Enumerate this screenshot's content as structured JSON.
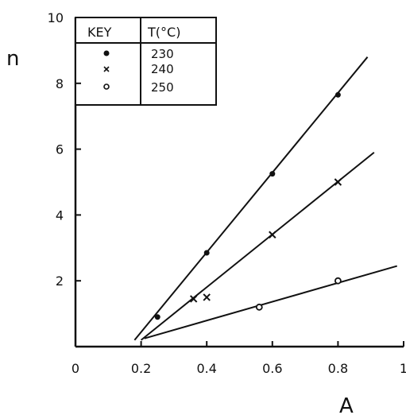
{
  "chart_data": {
    "type": "scatter",
    "xlabel": "A",
    "ylabel": "n",
    "xlim": [
      0,
      1
    ],
    "ylim": [
      0,
      10
    ],
    "x_ticks": [
      "0",
      "0.2",
      "0.4",
      "0.6",
      "0.8",
      "1"
    ],
    "y_ticks": [
      "2",
      "4",
      "6",
      "8",
      "10"
    ],
    "grid": false,
    "legend": {
      "placement": "top-left",
      "header_key": "KEY",
      "header_temp": "T(°C)",
      "entries": [
        "230",
        "240",
        "250"
      ]
    },
    "series": [
      {
        "name": "230",
        "marker": "filled-circle",
        "points": [
          [
            0.25,
            0.9
          ],
          [
            0.4,
            2.85
          ],
          [
            0.6,
            5.25
          ],
          [
            0.8,
            7.65
          ]
        ],
        "fit_line": [
          [
            0.18,
            0.2
          ],
          [
            0.89,
            8.8
          ]
        ]
      },
      {
        "name": "240",
        "marker": "cross",
        "points": [
          [
            0.36,
            1.45
          ],
          [
            0.4,
            1.5
          ],
          [
            0.6,
            3.4
          ],
          [
            0.8,
            5.0
          ]
        ],
        "fit_line": [
          [
            0.2,
            0.2
          ],
          [
            0.91,
            5.9
          ]
        ]
      },
      {
        "name": "250",
        "marker": "open-circle",
        "points": [
          [
            0.56,
            1.2
          ],
          [
            0.8,
            2.0
          ]
        ],
        "fit_line": [
          [
            0.21,
            0.25
          ],
          [
            0.98,
            2.45
          ]
        ]
      }
    ],
    "colors": {
      "ink": "#111111",
      "background": "#ffffff"
    }
  }
}
